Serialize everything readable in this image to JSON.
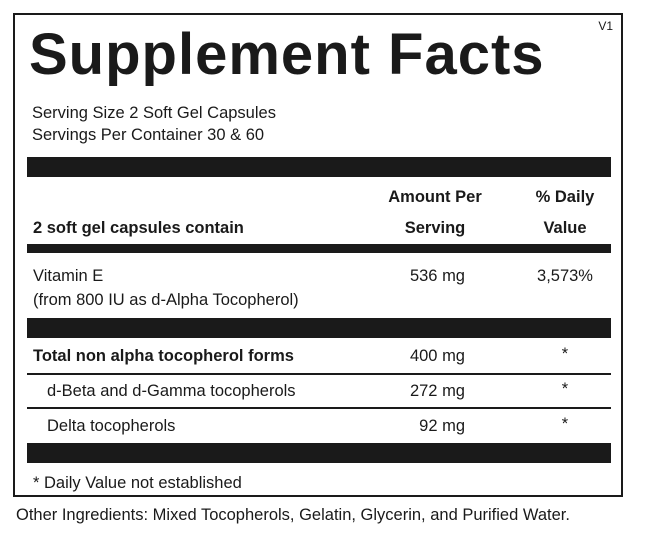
{
  "panel": {
    "version": "V1",
    "title": "Supplement Facts",
    "serving_size": "Serving Size 2 Soft Gel Capsules",
    "servings_per_container": "Servings Per Container 30 & 60"
  },
  "header": {
    "contain_label": "2 soft gel capsules contain",
    "amount_line1": "Amount Per",
    "amount_line2": "Serving",
    "dv_line1": "% Daily",
    "dv_line2": "Value"
  },
  "vitamin_e": {
    "name": "Vitamin E",
    "source": "(from 800 IU as d-Alpha Tocopherol)",
    "amount": "536 mg",
    "dv": "3,573%"
  },
  "tocopherols": [
    {
      "name": "Total non alpha tocopherol forms",
      "amount": "400 mg",
      "dv": "*"
    },
    {
      "name": "d-Beta and d-Gamma tocopherols",
      "amount": "272 mg",
      "dv": "*"
    },
    {
      "name": "Delta tocopherols",
      "amount": "92 mg",
      "dv": "*"
    }
  ],
  "footnote": "* Daily Value not established",
  "other_ingredients": "Other Ingredients: Mixed Tocopherols, Gelatin, Glycerin, and Purified Water."
}
